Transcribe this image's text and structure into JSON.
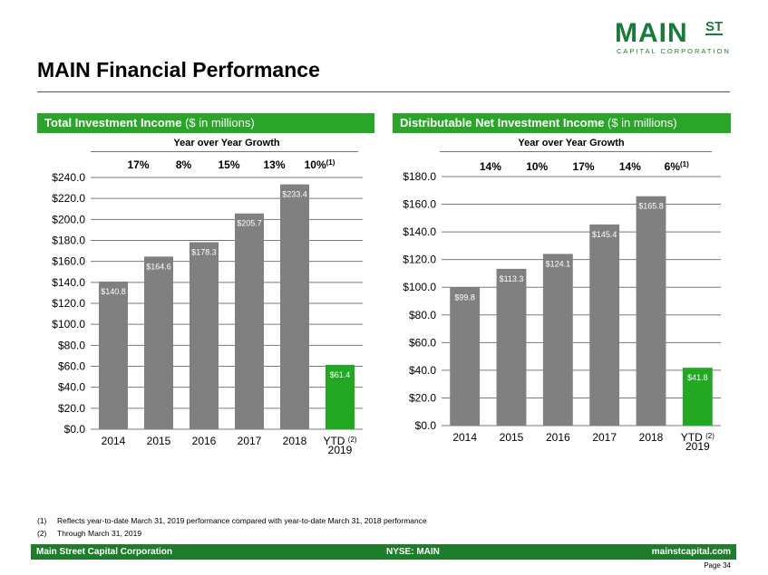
{
  "logo": {
    "main": "MAIN",
    "st": "ST",
    "sub": "CAPITAL CORPORATION"
  },
  "page_title": "MAIN Financial Performance",
  "colors": {
    "bar_gray": "#808080",
    "bar_green": "#22a822",
    "header_green": "#2aa52a",
    "footer_green": "#1e7c2a",
    "logo_green": "#1b7a3a"
  },
  "left_panel": {
    "header_bold": "Total Investment Income",
    "header_rest": " ($ in millions)",
    "growth_title": "Year over Year Growth"
  },
  "right_panel": {
    "header_bold": "Distributable Net Investment Income",
    "header_rest": " ($ in millions)",
    "growth_title": "Year over Year Growth"
  },
  "chart_data": [
    {
      "type": "bar",
      "title": "Total Investment Income ($ in millions)",
      "categories": [
        "2014",
        "2015",
        "2016",
        "2017",
        "2018",
        "YTD 2019"
      ],
      "category_lines": [
        [
          "2014"
        ],
        [
          "2015"
        ],
        [
          "2016"
        ],
        [
          "2017"
        ],
        [
          "2018"
        ],
        [
          "YTD ",
          "2019"
        ]
      ],
      "category_sup": [
        "",
        "",
        "",
        "",
        "",
        "(2)"
      ],
      "values": [
        140.8,
        164.6,
        178.3,
        205.7,
        233.4,
        61.4
      ],
      "data_labels": [
        "$140.8",
        "$164.6",
        "$178.3",
        "$205.7",
        "$233.4",
        "$61.4"
      ],
      "bar_colors": [
        "#808080",
        "#808080",
        "#808080",
        "#808080",
        "#808080",
        "#22a822"
      ],
      "growth": [
        "17%",
        "8%",
        "15%",
        "13%",
        "10%"
      ],
      "growth_sup": [
        "",
        "",
        "",
        "",
        "(1)"
      ],
      "ylim": [
        0,
        240
      ],
      "yticks": [
        0,
        20,
        40,
        60,
        80,
        100,
        120,
        140,
        160,
        180,
        200,
        220,
        240
      ],
      "ytick_labels": [
        "$0.0",
        "$20.0",
        "$40.0",
        "$60.0",
        "$80.0",
        "$100.0",
        "$120.0",
        "$140.0",
        "$160.0",
        "$180.0",
        "$200.0",
        "$220.0",
        "$240.0"
      ],
      "grid": true
    },
    {
      "type": "bar",
      "title": "Distributable Net Investment Income ($ in millions)",
      "categories": [
        "2014",
        "2015",
        "2016",
        "2017",
        "2018",
        "YTD 2019"
      ],
      "category_lines": [
        [
          "2014"
        ],
        [
          "2015"
        ],
        [
          "2016"
        ],
        [
          "2017"
        ],
        [
          "2018"
        ],
        [
          "YTD ",
          "2019"
        ]
      ],
      "category_sup": [
        "",
        "",
        "",
        "",
        "",
        "(2)"
      ],
      "values": [
        99.8,
        113.3,
        124.1,
        145.4,
        165.8,
        41.8
      ],
      "data_labels": [
        "$99.8",
        "$113.3",
        "$124.1",
        "$145.4",
        "$165.8",
        "$41.8"
      ],
      "bar_colors": [
        "#808080",
        "#808080",
        "#808080",
        "#808080",
        "#808080",
        "#22a822"
      ],
      "growth": [
        "14%",
        "10%",
        "17%",
        "14%",
        "6%"
      ],
      "growth_sup": [
        "",
        "",
        "",
        "",
        "(1)"
      ],
      "ylim": [
        0,
        180
      ],
      "yticks": [
        0,
        20,
        40,
        60,
        80,
        100,
        120,
        140,
        160,
        180
      ],
      "ytick_labels": [
        "$0.0",
        "$20.0",
        "$40.0",
        "$60.0",
        "$80.0",
        "$100.0",
        "$120.0",
        "$140.0",
        "$160.0",
        "$180.0"
      ],
      "grid": true
    }
  ],
  "footnotes": [
    {
      "num": "(1)",
      "text": "Reflects year-to-date March 31, 2019 performance compared with year-to-date March 31, 2018 performance"
    },
    {
      "num": "(2)",
      "text": "Through March 31, 2019"
    }
  ],
  "footer": {
    "left": "Main Street Capital Corporation",
    "center": "NYSE: MAIN",
    "right": "mainstcapital.com"
  },
  "page_number": "Page 34"
}
